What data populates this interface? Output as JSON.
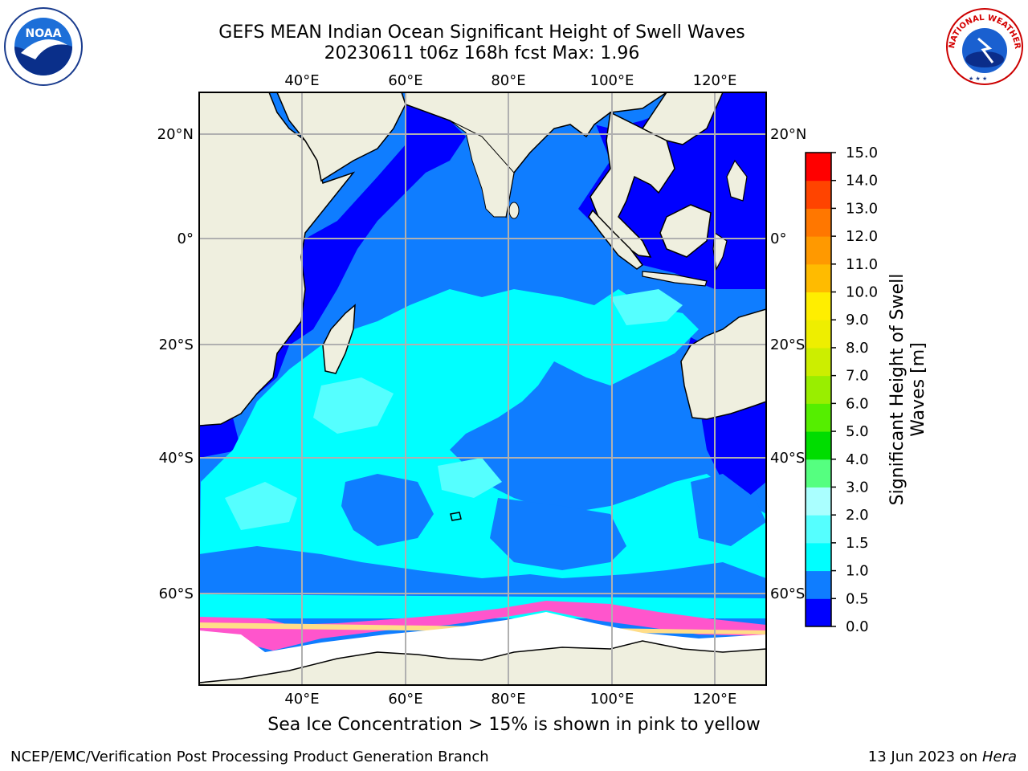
{
  "header": {
    "title_line1": "GEFS MEAN Indian Ocean Significant Height of Swell Waves",
    "title_line2": "20230611 t06z 168h fcst   Max: 1.96"
  },
  "logos": {
    "left": {
      "name": "noaa-logo",
      "text": "NOAA",
      "ring_text": "NATIONAL OCEANIC AND ATMOSPHERIC ADMINISTRATION · U.S. DEPARTMENT OF COMMERCE"
    },
    "right": {
      "name": "nws-logo",
      "ring_text": "NATIONAL WEATHER SERVICE"
    }
  },
  "map": {
    "lon_labels": [
      "40°E",
      "60°E",
      "80°E",
      "100°E",
      "120°E"
    ],
    "lat_labels": [
      "20°N",
      "0°",
      "20°S",
      "40°S",
      "60°S"
    ],
    "land_color": "#efefdf",
    "ice_color": "#ffffff",
    "grid_color": "#b0b0b0"
  },
  "colorbar": {
    "label_line1": "Significant Height of Swell",
    "label_line2": "Waves [m]",
    "ticks": [
      "0.0",
      "0.5",
      "1.0",
      "1.5",
      "2.0",
      "3.0",
      "4.0",
      "5.0",
      "6.0",
      "7.0",
      "8.0",
      "9.0",
      "10.0",
      "11.0",
      "12.0",
      "13.0",
      "14.0",
      "15.0"
    ],
    "colors": [
      "#0000ff",
      "#0f7dff",
      "#00ffff",
      "#55ffff",
      "#aaffff",
      "#55ff80",
      "#00dd00",
      "#55ee00",
      "#99ee00",
      "#ccee00",
      "#eeee00",
      "#ffee00",
      "#ffbb00",
      "#ff9900",
      "#ff7700",
      "#ff4400",
      "#ff0000"
    ]
  },
  "caption": "Sea Ice Concentration > 15% is shown in pink to yellow",
  "footer": {
    "left": "NCEP/EMC/Verification Post Processing Product Generation Branch",
    "right_prefix": "13 Jun 2023 on ",
    "right_host": "Hera"
  }
}
